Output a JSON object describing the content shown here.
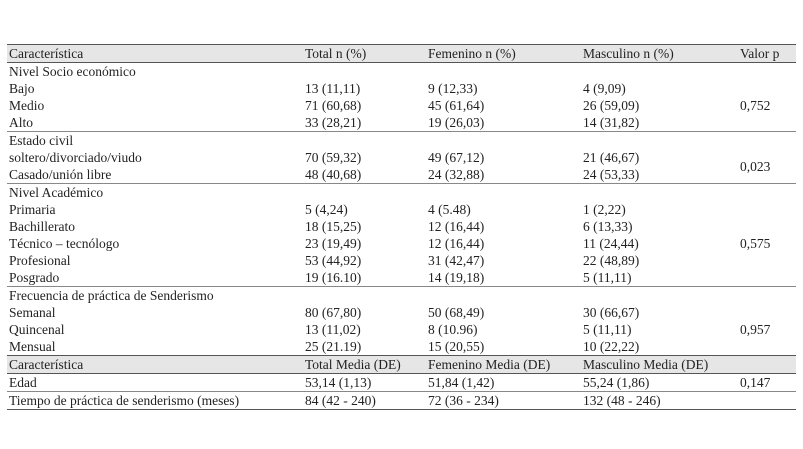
{
  "table": {
    "header": [
      "Característica",
      "Total n (%)",
      "Femenino n (%)",
      "Masculino n (%)",
      "Valor p"
    ],
    "groups": [
      {
        "title": "Nivel Socio económico",
        "p": "0,752",
        "rows": [
          [
            "Bajo",
            "13 (11,11)",
            "9 (12,33)",
            "4 (9,09)"
          ],
          [
            "Medio",
            "71 (60,68)",
            "45 (61,64)",
            "26 (59,09)"
          ],
          [
            "Alto",
            "33 (28,21)",
            "19 (26,03)",
            "14 (31,82)"
          ]
        ]
      },
      {
        "title": "Estado civil",
        "p": "0,023",
        "rows": [
          [
            "soltero/divorciado/viudo",
            "70 (59,32)",
            "49 (67,12)",
            "21 (46,67)"
          ],
          [
            "Casado/unión libre",
            "48 (40,68)",
            "24 (32,88)",
            "24 (53,33)"
          ]
        ]
      },
      {
        "title": "Nivel Académico",
        "p": "0,575",
        "rows": [
          [
            "Primaria",
            "5 (4,24)",
            "4 (5.48)",
            "1 (2,22)"
          ],
          [
            "Bachillerato",
            "18 (15,25)",
            "12 (16,44)",
            "6 (13,33)"
          ],
          [
            "Técnico – tecnólogo",
            "23 (19,49)",
            "12 (16,44)",
            "11 (24,44)"
          ],
          [
            "Profesional",
            "53 (44,92)",
            "31 (42,47)",
            "22 (48,89)"
          ],
          [
            "Posgrado",
            "19 (16.10)",
            "14 (19,18)",
            "5 (11,11)"
          ]
        ]
      },
      {
        "title": "Frecuencia de práctica de Senderismo",
        "p": "0,957",
        "rows": [
          [
            "Semanal",
            "80 (67,80)",
            "50 (68,49)",
            "30 (66,67)"
          ],
          [
            "Quincenal",
            "13 (11,02)",
            "8 (10.96)",
            "5 (11,11)"
          ],
          [
            "Mensual",
            "25 (21.19)",
            "15 (20,55)",
            "10 (22,22)"
          ]
        ]
      }
    ],
    "header2": [
      "Característica",
      "Total Media (DE)",
      "Femenino Media (DE)",
      "Masculino Media (DE)"
    ],
    "rows2": [
      [
        "Edad",
        "53,14 (1,13)",
        "51,84 (1,42)",
        "55,24 (1,86)",
        "0,147"
      ],
      [
        "Tiempo de práctica de senderismo (meses)",
        "84 (42 - 240)",
        "72 (36 - 234)",
        "132 (48 - 246)"
      ]
    ]
  }
}
